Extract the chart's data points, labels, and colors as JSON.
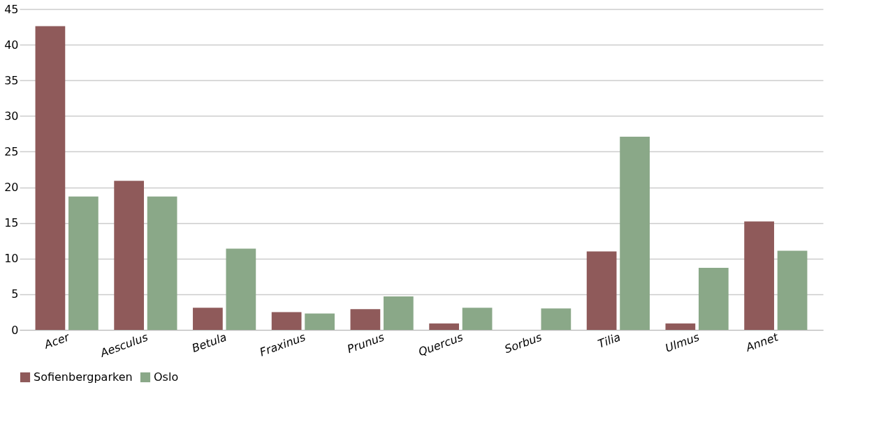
{
  "chart_data": {
    "type": "bar",
    "categories": [
      "Acer",
      "Aesculus",
      "Betula",
      "Fraxinus",
      "Prunus",
      "Quercus",
      "Sorbus",
      "Tilia",
      "Ulmus",
      "Annet"
    ],
    "series": [
      {
        "name": "Sofienbergparken",
        "color": "#8f5a5a",
        "values": [
          42.6,
          20.9,
          3.1,
          2.5,
          2.9,
          0.9,
          0,
          11.0,
          0.9,
          15.2
        ]
      },
      {
        "name": "Oslo",
        "color": "#8aa888",
        "values": [
          18.7,
          18.7,
          11.4,
          2.3,
          4.7,
          3.1,
          3.0,
          27.1,
          8.7,
          11.1
        ]
      }
    ],
    "ylim": [
      0,
      45
    ],
    "yticks": [
      0,
      5,
      10,
      15,
      20,
      25,
      30,
      35,
      40,
      45
    ],
    "grid": "y",
    "legend": "bottom"
  }
}
